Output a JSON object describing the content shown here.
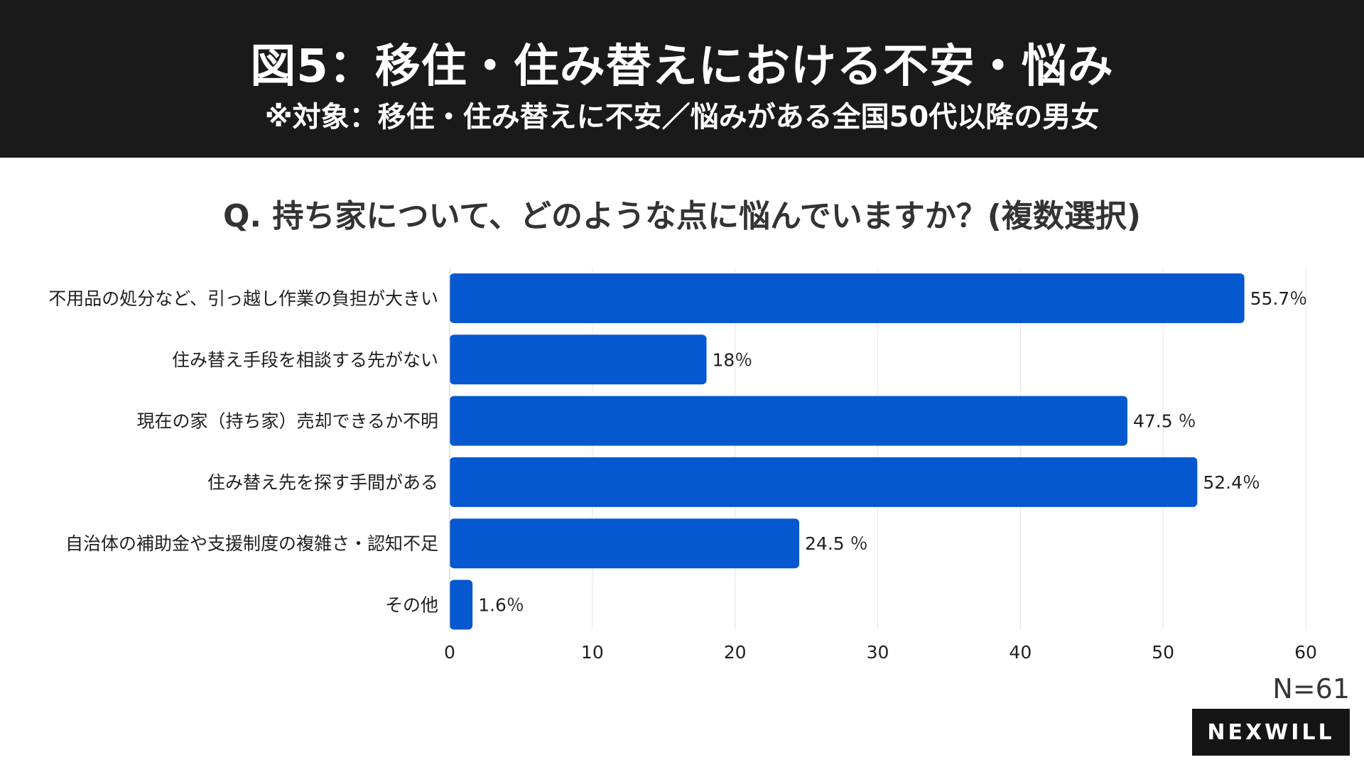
{
  "header": {
    "title": "図5：移住・住み替えにおける不安・悩み",
    "subtitle": "※対象：移住・住み替えに不安／悩みがある全国50代以降の男女"
  },
  "question": "Q. 持ち家について、どのような点に悩んでいますか？(複数選択)",
  "sample_size": "N=61",
  "brand": "NEXWILL",
  "colors": {
    "bar": "#0558cf",
    "grid": "#e6e6e6",
    "header_bg": "#1a1a1a"
  },
  "chart_data": {
    "type": "bar",
    "orientation": "horizontal",
    "categories": [
      "不用品の処分など、引っ越し作業の負担が大きい",
      "住み替え手段を相談する先がない",
      "現在の家（持ち家）売却できるか不明",
      "住み替え先を探す手間がある",
      "自治体の補助金や支援制度の複雑さ・認知不足",
      "その他"
    ],
    "values": [
      55.7,
      18,
      47.5,
      52.4,
      24.5,
      1.6
    ],
    "value_labels": [
      "55.7％",
      "18％",
      "47.5 ％",
      "52.4％",
      "24.5 ％",
      "1.6％"
    ],
    "xlim": [
      0,
      60
    ],
    "xticks": [
      0,
      10,
      20,
      30,
      40,
      50,
      60
    ],
    "title": "",
    "xlabel": "",
    "ylabel": "",
    "grid": true
  }
}
